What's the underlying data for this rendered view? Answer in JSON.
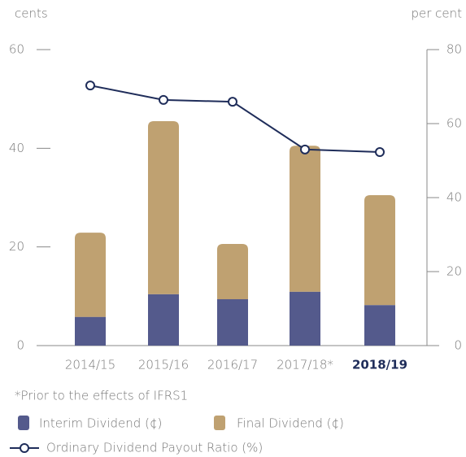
{
  "chart_data": {
    "type": "bar_line",
    "y_axis_label": "cents",
    "y2_axis_label": "per cent",
    "categories": [
      "2014/15",
      "2015/16",
      "2016/17",
      "2017/18*",
      "2018/19"
    ],
    "highlight_category_index": 4,
    "series": [
      {
        "name": "Interim Dividend (¢)",
        "color": "#545a8c",
        "values": [
          5.8,
          10.4,
          9.4,
          10.9,
          8.2
        ]
      },
      {
        "name": "Final Dividend (¢)",
        "color": "#bfa171",
        "values": [
          17.1,
          35.1,
          11.2,
          29.6,
          22.3
        ]
      },
      {
        "name": "Ordinary Dividend Payout Ratio (%)",
        "color": "#1f2d5a",
        "axis": "y2",
        "values": [
          70.3,
          66.4,
          65.9,
          53.0,
          52.3
        ]
      }
    ],
    "ylim": [
      0,
      60
    ],
    "yticks": [
      0,
      20,
      40,
      60
    ],
    "y2lim": [
      0,
      80
    ],
    "y2ticks": [
      0,
      20,
      40,
      60,
      80
    ],
    "footnote": "*Prior to the effects of IFRS1"
  }
}
